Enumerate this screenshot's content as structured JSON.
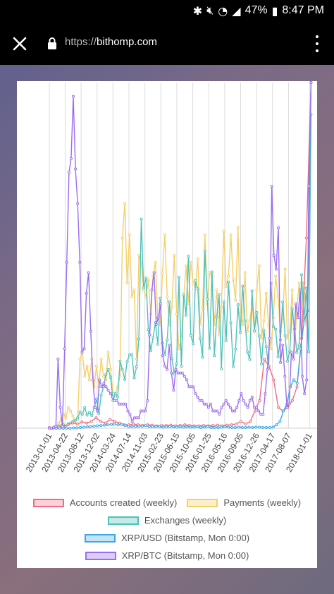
{
  "status_bar": {
    "battery": "47%",
    "time": "8:47 PM"
  },
  "browser": {
    "url_scheme": "https://",
    "url_host": "bithomp.com"
  },
  "colors": {
    "accounts": "#f26b85",
    "payments": "#f5cf6a",
    "exchanges": "#4fc2b8",
    "xrpusd": "#3aa7e6",
    "xrpbtc": "#9b6df0"
  },
  "chart_data": {
    "type": "line",
    "x_ticks": [
      "2013-01-01",
      "2013-04-22",
      "2013-08-12",
      "2013-12-02",
      "2014-03-24",
      "2014-07-14",
      "2014-11-03",
      "2015-02-23",
      "2015-06-15",
      "2015-10-05",
      "2016-01-25",
      "2016-05-16",
      "2016-09-05",
      "2016-12-26",
      "2017-04-17",
      "2017-08-07",
      "2018-01-01"
    ],
    "xlim": [
      "2013-01-01",
      "2018-01-15"
    ],
    "ylim": [
      0,
      100
    ],
    "grid": {
      "vertical": true,
      "horizontal": false
    },
    "legend_position": "bottom",
    "legend": [
      {
        "key": "accounts",
        "label": "Accounts created (weekly)"
      },
      {
        "key": "payments",
        "label": "Payments (weekly)"
      },
      {
        "key": "exchanges",
        "label": "Exchanges (weekly)"
      },
      {
        "key": "xrpusd",
        "label": "XRP/USD (Bitstamp, Mon 0:00)"
      },
      {
        "key": "xrpbtc",
        "label": "XRP/BTC (Bitstamp, Mon 0:00)"
      }
    ],
    "series": [
      {
        "key": "accounts",
        "values": [
          0.2,
          0.2,
          0.4,
          0.5,
          1,
          1.5,
          1.2,
          1.8,
          1.5,
          2,
          3,
          2,
          1.5,
          2.5,
          2,
          1.5,
          1,
          1,
          1.2,
          1,
          0.8,
          1,
          0.9,
          0.7,
          0.8,
          0.8,
          0.9,
          0.7,
          0.8,
          1,
          0.8,
          0.7,
          0.7,
          0.8,
          0.7,
          0.8,
          0.9,
          0.7,
          0.9,
          1,
          1.2,
          2,
          1.2,
          2,
          5,
          8,
          20,
          18,
          14,
          6,
          5,
          6,
          8,
          12,
          26,
          55,
          100
        ]
      },
      {
        "key": "payments",
        "values": [
          0,
          0,
          0.2,
          0.6,
          1.5,
          2.5,
          4,
          3,
          6,
          5,
          3.5,
          2,
          2.5,
          20,
          22,
          15,
          18,
          14,
          20,
          12,
          18,
          12,
          20,
          15,
          14,
          22,
          17,
          10,
          10,
          12,
          15,
          55,
          65,
          42,
          56,
          38,
          40,
          20,
          50,
          48,
          40,
          38,
          43,
          33,
          44,
          48,
          32,
          30,
          45,
          56,
          38,
          30,
          35,
          50,
          33,
          23,
          26,
          38,
          47,
          36,
          48,
          42,
          41,
          49,
          30,
          35,
          56,
          36,
          45,
          44,
          30,
          40,
          27,
          35,
          57,
          41,
          44,
          56,
          43,
          37,
          58,
          33,
          30,
          45,
          28,
          31,
          36,
          28,
          40,
          47,
          26,
          31,
          39,
          30,
          23,
          32,
          44,
          38,
          28,
          32,
          46,
          26,
          28,
          40,
          22,
          35,
          42,
          34,
          42,
          30,
          44,
          100
        ]
      },
      {
        "key": "exchanges",
        "values": [
          0,
          0,
          0.3,
          0.4,
          0.6,
          0.8,
          1,
          0.6,
          1.2,
          1.5,
          2.1,
          2.3,
          3,
          4.7,
          4,
          6,
          3.8,
          4.5,
          3.7,
          6,
          8.4,
          4.3,
          9.5,
          12,
          15.5,
          17,
          14.7,
          8,
          10,
          9,
          19.4,
          17,
          14.1,
          19.3,
          21.2,
          21.3,
          14.6,
          17.8,
          25.8,
          60.5,
          40.6,
          43.5,
          28.5,
          22.4,
          26.2,
          30.6,
          24.3,
          37.6,
          24.6,
          21.2,
          25.6,
          36.6,
          20.2,
          15.7,
          18.7,
          43.7,
          17.9,
          38.7,
          32.7,
          49.8,
          26.8,
          24.4,
          42.7,
          40.3,
          25.9,
          20.5,
          51.3,
          37.3,
          23.1,
          45.2,
          21,
          32.2,
          38.7,
          17.2,
          36.6,
          25.3,
          42.3,
          30.5,
          17.8,
          22.9,
          35.8,
          27.7,
          41.1,
          31,
          22.1,
          19.9,
          39.7,
          28.2,
          33.5,
          26.7,
          18.6,
          28.3,
          23.6,
          17.3,
          41.9,
          29.4,
          28.6,
          20.7,
          25.6,
          36.5,
          26.8,
          19.4,
          22.2,
          34.6,
          28.7,
          21.9,
          24.1,
          44.4,
          31.5,
          40.5,
          22.1,
          90.8
        ]
      },
      {
        "key": "xrpusd",
        "values": [
          0,
          0,
          0,
          0,
          0,
          0,
          0,
          0.1,
          0.1,
          0.2,
          0.3,
          0.4,
          0.5,
          0.6,
          0.7,
          0.8,
          0.9,
          1,
          1.1,
          1.2,
          1,
          1.1,
          0.8,
          0.5,
          0.5,
          0.5,
          0.6,
          0.6,
          0.8,
          0.5,
          0.4,
          0.5,
          0.4,
          0.3,
          0.4,
          0.5,
          0.4,
          0.3,
          0.4,
          0.3,
          0.4,
          0.3,
          0.3,
          0.4,
          0.2,
          0.3,
          0.5,
          0.2,
          0.2,
          0.2,
          0.3,
          0.4,
          0.3,
          0.2,
          0.2,
          0.3,
          0.2,
          0.2,
          0.3,
          0.2,
          0.3,
          0.3,
          0.2,
          0.2,
          0.2,
          0.3,
          1,
          2,
          5,
          7,
          12,
          14,
          13,
          23,
          31,
          34,
          100
        ]
      },
      {
        "key": "xrpbtc",
        "values": [
          0,
          0,
          0.3,
          0.5,
          20,
          6,
          0.4,
          23,
          48,
          74,
          78,
          96,
          75,
          65,
          48,
          22,
          23,
          39,
          45,
          28,
          14,
          6,
          5,
          14,
          12,
          13,
          12,
          11,
          10,
          9,
          8,
          8,
          7,
          7,
          7,
          7,
          5,
          4,
          2,
          3,
          3,
          3,
          5,
          5,
          5,
          8,
          27,
          40,
          45,
          30,
          32,
          36,
          21,
          18,
          17,
          24,
          16,
          11,
          17,
          16,
          16,
          16,
          15,
          14,
          12,
          12,
          12,
          10,
          9,
          8,
          8,
          7,
          7,
          6,
          7,
          5,
          5,
          5,
          4,
          6,
          7,
          8,
          7,
          6,
          5,
          5,
          6,
          8,
          10,
          8,
          7,
          6,
          8,
          9,
          6,
          6,
          5,
          4,
          4,
          10,
          17,
          26,
          70,
          50,
          46,
          58,
          19,
          24,
          15,
          6,
          7,
          22,
          20,
          36,
          32,
          40,
          15,
          10,
          14,
          70,
          100
        ]
      }
    ]
  },
  "legend_labels": {
    "accounts": "Accounts created (weekly)",
    "payments": "Payments (weekly)",
    "exchanges": "Exchanges (weekly)",
    "xrpusd": "XRP/USD (Bitstamp, Mon 0:00)",
    "xrpbtc": "XRP/BTC (Bitstamp, Mon 0:00)"
  }
}
